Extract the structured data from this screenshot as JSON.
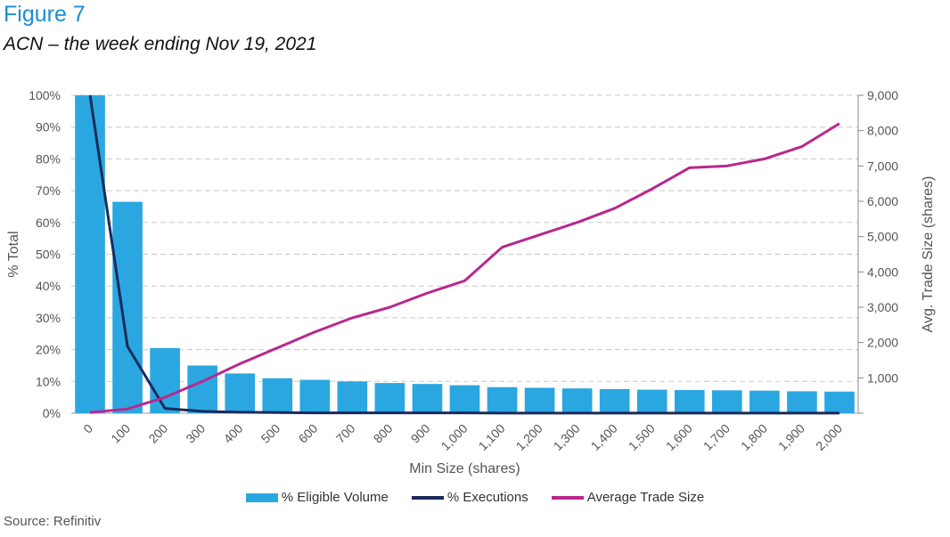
{
  "figure_label": "Figure 7",
  "subtitle": "ACN – the week ending Nov 19, 2021",
  "source": "Source: Refinitiv",
  "colors": {
    "bar": "#2aa7e1",
    "executions": "#1b2a5c",
    "avg_trade": "#b8288e",
    "grid": "#c8c8c8"
  },
  "chart_data": {
    "type": "bar",
    "categories": [
      "0",
      "100",
      "200",
      "300",
      "400",
      "500",
      "600",
      "700",
      "800",
      "900",
      "1,000",
      "1,100",
      "1,200",
      "1,300",
      "1,400",
      "1,500",
      "1,600",
      "1,700",
      "1,800",
      "1,900",
      "2,000"
    ],
    "xlabel": "Min Size (shares)",
    "ylabel": "% Total",
    "ylabel_right": "Avg. Trade Size (shares)",
    "ylim": [
      0,
      100
    ],
    "ylim_right": [
      0,
      9000
    ],
    "yticks": [
      "0%",
      "10%",
      "20%",
      "30%",
      "40%",
      "50%",
      "60%",
      "70%",
      "80%",
      "90%",
      "100%"
    ],
    "yticks_right": [
      "",
      "1,000",
      "2,000",
      "3,000",
      "4,000",
      "5,000",
      "6,000",
      "7,000",
      "8,000",
      "9,000"
    ],
    "grid": "horizontal dashed",
    "legend_position": "bottom",
    "series": [
      {
        "name": "% Eligible Volume",
        "type": "bar",
        "axis": "left",
        "values": [
          100,
          66.5,
          20.5,
          15,
          12.5,
          11,
          10.5,
          10,
          9.5,
          9.2,
          8.8,
          8.2,
          8.0,
          7.8,
          7.6,
          7.4,
          7.3,
          7.2,
          7.1,
          6.9,
          6.8
        ]
      },
      {
        "name": "% Executions",
        "type": "line",
        "axis": "left",
        "values": [
          100,
          21,
          1.5,
          0.6,
          0.3,
          0.2,
          0.1,
          0.1,
          0.1,
          0.1,
          0.1,
          0.05,
          0.05,
          0.05,
          0.05,
          0.05,
          0.05,
          0.05,
          0.05,
          0.05,
          0.05
        ]
      },
      {
        "name": "Average Trade Size",
        "type": "line",
        "axis": "right",
        "values": [
          20,
          120,
          450,
          900,
          1400,
          1850,
          2300,
          2700,
          3000,
          3400,
          3750,
          4700,
          5050,
          5400,
          5800,
          6350,
          6950,
          7000,
          7200,
          7550,
          8200
        ]
      }
    ]
  }
}
